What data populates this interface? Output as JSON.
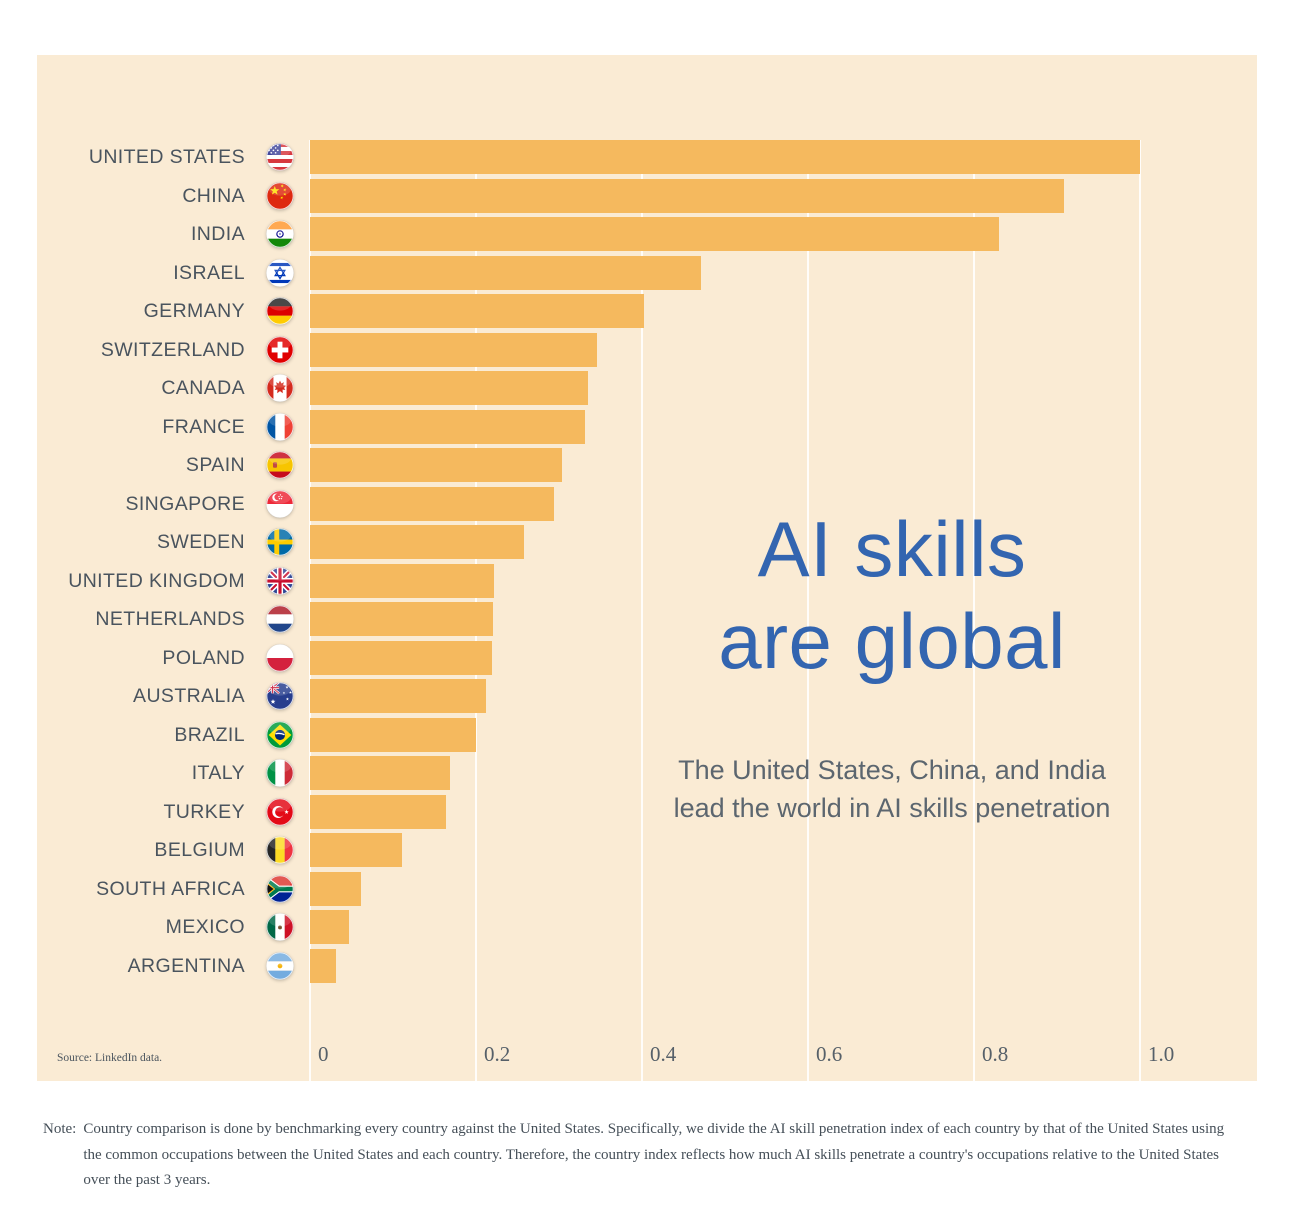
{
  "page": {
    "background": "#ffffff"
  },
  "panel": {
    "background": "#faebd4"
  },
  "title": {
    "line1": "AI skills",
    "line2": "are global",
    "color": "#3365b0"
  },
  "subtitle": {
    "line1": "The United States, China, and India",
    "line2": "lead the world in AI skills penetration",
    "color": "#5c666f"
  },
  "source": {
    "text": "Source: LinkedIn data."
  },
  "note": {
    "label": "Note:",
    "text": "Country comparison is done by benchmarking every country against the United States. Specifically, we divide the AI skill penetration index of each country by that of the United States using the common occupations between the United States and each country. Therefore, the country index reflects how much AI skills penetrate a country's occupations relative to the United States over the past 3 years."
  },
  "axis": {
    "tick_labels": [
      "0",
      "0.2",
      "0.4",
      "0.6",
      "0.8",
      "1.0"
    ],
    "tick_values": [
      0,
      0.2,
      0.4,
      0.6,
      0.8,
      1.0
    ]
  },
  "chart_data": {
    "type": "bar",
    "orientation": "horizontal",
    "title": "AI skills are global",
    "subtitle": "The United States, China, and India lead the world in AI skills penetration",
    "xlabel": "",
    "ylabel": "",
    "xlim": [
      0,
      1.14
    ],
    "grid": true,
    "legend": false,
    "bar_color": "#f5b95e",
    "categories": [
      "UNITED STATES",
      "CHINA",
      "INDIA",
      "ISRAEL",
      "GERMANY",
      "SWITZERLAND",
      "CANADA",
      "FRANCE",
      "SPAIN",
      "SINGAPORE",
      "SWEDEN",
      "UNITED KINGDOM",
      "NETHERLANDS",
      "POLAND",
      "AUSTRALIA",
      "BRAZIL",
      "ITALY",
      "TURKEY",
      "BELGIUM",
      "SOUTH AFRICA",
      "MEXICO",
      "ARGENTINA"
    ],
    "values": [
      1.0,
      0.908,
      0.83,
      0.471,
      0.402,
      0.346,
      0.335,
      0.331,
      0.304,
      0.294,
      0.258,
      0.222,
      0.221,
      0.219,
      0.212,
      0.2,
      0.169,
      0.164,
      0.111,
      0.062,
      0.047,
      0.031
    ],
    "flags": [
      "us",
      "cn",
      "in",
      "il",
      "de",
      "ch",
      "ca",
      "fr",
      "es",
      "sg",
      "se",
      "gb",
      "nl",
      "pl",
      "au",
      "br",
      "it",
      "tr",
      "be",
      "za",
      "mx",
      "ar"
    ]
  }
}
